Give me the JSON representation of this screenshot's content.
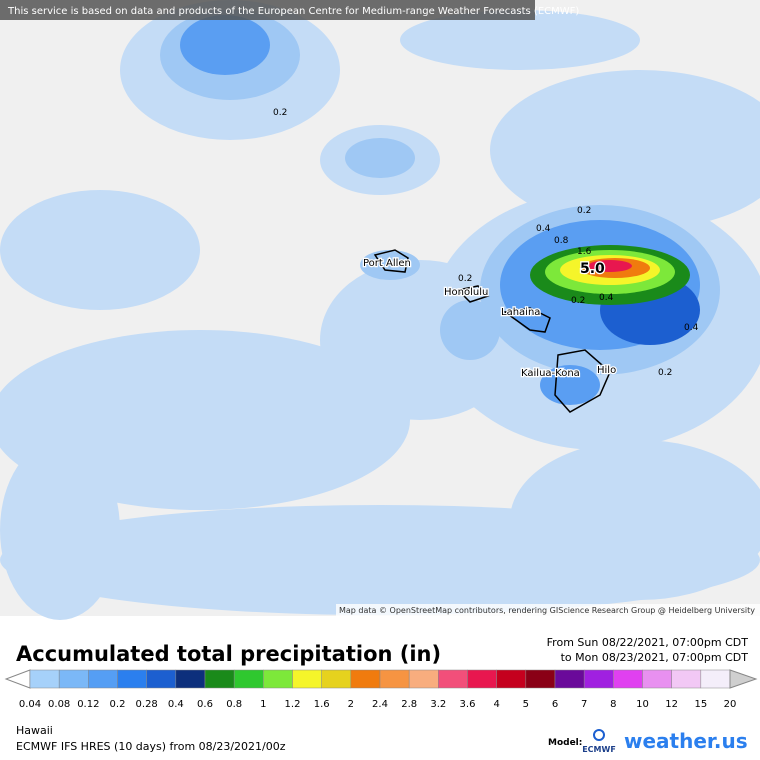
{
  "header": {
    "attribution": "This service is based on data and products of the European Centre for Medium-range Weather Forecasts (ECMWF)"
  },
  "map": {
    "credit": "Map data © OpenStreetMap contributors, rendering GIScience Research Group @ Heidelberg University",
    "cities": [
      "Port Allen",
      "Honolulu",
      "Lahaina",
      "Kailua-Kona",
      "Hilo"
    ],
    "contour_labels": [
      "0.2",
      "0.2",
      "0.4",
      "0.8",
      "1.6",
      "5.0",
      "0.2",
      "0.2",
      "0.4",
      "0.4",
      "0.2"
    ]
  },
  "legend": {
    "title": "Accumulated total precipitation (in)",
    "period_from": "From Sun 08/22/2021, 07:00pm CDT",
    "period_to": "to Mon 08/23/2021, 07:00pm CDT",
    "ticks": [
      "0.04",
      "0.08",
      "0.12",
      "0.2",
      "0.28",
      "0.4",
      "0.6",
      "0.8",
      "1",
      "1.2",
      "1.6",
      "2",
      "2.4",
      "2.8",
      "3.2",
      "3.6",
      "4",
      "5",
      "6",
      "7",
      "8",
      "10",
      "12",
      "15",
      "20"
    ],
    "colors": [
      "#a6d1fa",
      "#7bb8f7",
      "#559ef4",
      "#2b7fee",
      "#1c5fd0",
      "#0d2f7c",
      "#1a8a1a",
      "#2fc82f",
      "#7de83a",
      "#f5f52a",
      "#e6d21e",
      "#f07b0e",
      "#f69442",
      "#f8ad7e",
      "#f24f7a",
      "#e8174f",
      "#c5001e",
      "#8a0016",
      "#6a0a9a",
      "#a020e0",
      "#e040f0",
      "#e890f0",
      "#f2c8f5",
      "#f4eefa",
      "#cfcfcf"
    ]
  },
  "footer": {
    "region": "Hawaii",
    "model_run": "ECMWF IFS HRES (10 days) from 08/23/2021/00z",
    "model_label": "Model:",
    "model_logo": "ECMWF",
    "brand": "weather.us"
  }
}
